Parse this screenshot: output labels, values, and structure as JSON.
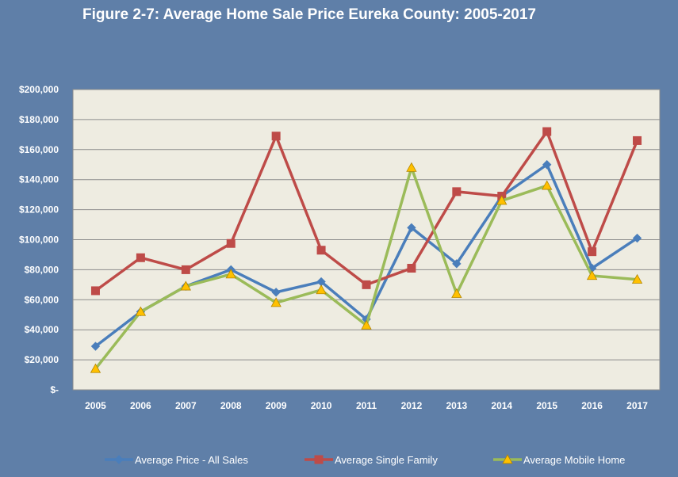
{
  "chart_data": {
    "type": "line",
    "title": "Figure 2-7: Average Home Sale Price Eureka County: 2005-2017",
    "xlabel": "",
    "ylabel": "",
    "categories": [
      "2005",
      "2006",
      "2007",
      "2008",
      "2009",
      "2010",
      "2011",
      "2012",
      "2013",
      "2014",
      "2015",
      "2016",
      "2017"
    ],
    "ylim": [
      0,
      200000
    ],
    "yticks": [
      0,
      20000,
      40000,
      60000,
      80000,
      100000,
      120000,
      140000,
      160000,
      180000,
      200000
    ],
    "ytick_labels": [
      "$-",
      "$20,000",
      "$40,000",
      "$60,000",
      "$80,000",
      "$100,000",
      "$120,000",
      "$140,000",
      "$160,000",
      "$180,000",
      "$200,000"
    ],
    "grid": true,
    "legend_position": "bottom",
    "series": [
      {
        "name": "Average Price - All Sales",
        "color": "#4a7ebb",
        "marker": "diamond",
        "values": [
          29000,
          52000,
          69000,
          80000,
          65000,
          72000,
          47000,
          108000,
          84000,
          129000,
          150000,
          81000,
          101000
        ]
      },
      {
        "name": "Average Single Family",
        "color": "#be4b48",
        "marker": "square",
        "values": [
          66000,
          88000,
          80000,
          97500,
          169000,
          93000,
          70000,
          81000,
          132000,
          129000,
          172000,
          92000,
          166000
        ]
      },
      {
        "name": "Average Mobile Home",
        "color": "#9bbb59",
        "marker_color": "#ffc000",
        "marker": "triangle",
        "values": [
          14000,
          52000,
          69000,
          77000,
          58000,
          66500,
          43000,
          148000,
          64000,
          126000,
          136000,
          76000,
          73500
        ]
      }
    ]
  }
}
